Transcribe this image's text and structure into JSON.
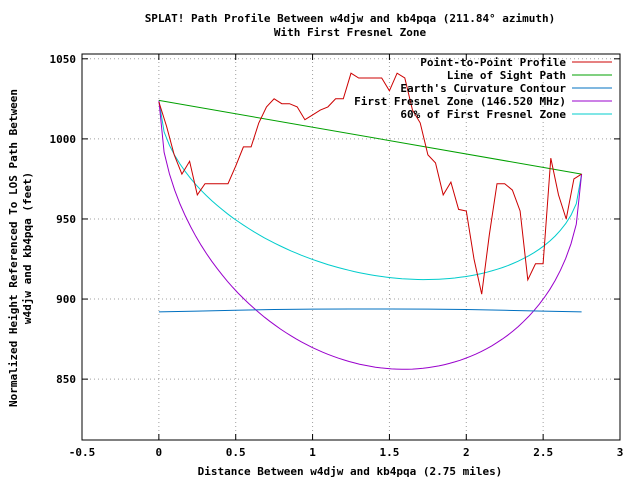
{
  "chart_data": {
    "type": "line",
    "title": "SPLAT! Path Profile Between w4djw and kb4pqa (211.84° azimuth)",
    "subtitle": "With First Fresnel Zone",
    "xlabel": "Distance Between w4djw and kb4pqa (2.75 miles)",
    "ylabel_line1": "Normalized Height Referenced To LOS Path Between",
    "ylabel_line2": "w4djw and kb4pqa (feet)",
    "xlim": [
      -0.5,
      3
    ],
    "ylim": [
      812,
      1053
    ],
    "x_ticks": [
      -0.5,
      0,
      0.5,
      1,
      1.5,
      2,
      2.5,
      3
    ],
    "x_tick_labels": [
      "-0.5",
      "0",
      "0.5",
      "1",
      "1.5",
      "2",
      "2.5",
      "3"
    ],
    "y_ticks": [
      850,
      900,
      950,
      1000,
      1050
    ],
    "y_tick_labels": [
      "850",
      "900",
      "950",
      "1000",
      "1050"
    ],
    "grid": true,
    "legend_position": "top-right",
    "series": [
      {
        "name": "Point-to-Point Profile",
        "color": "#cc0000",
        "x": [
          0,
          0.05,
          0.1,
          0.15,
          0.2,
          0.25,
          0.3,
          0.35,
          0.4,
          0.45,
          0.5,
          0.55,
          0.6,
          0.65,
          0.7,
          0.75,
          0.8,
          0.85,
          0.9,
          0.95,
          1.0,
          1.05,
          1.1,
          1.15,
          1.2,
          1.25,
          1.3,
          1.35,
          1.4,
          1.45,
          1.5,
          1.55,
          1.6,
          1.65,
          1.7,
          1.75,
          1.8,
          1.85,
          1.9,
          1.95,
          2.0,
          2.05,
          2.1,
          2.15,
          2.2,
          2.25,
          2.3,
          2.35,
          2.4,
          2.45,
          2.5,
          2.55,
          2.6,
          2.65,
          2.7,
          2.75
        ],
        "y": [
          1023,
          1008,
          990,
          978,
          986,
          965,
          972,
          972,
          972,
          972,
          983,
          995,
          995,
          1010,
          1020,
          1025,
          1022,
          1022,
          1020,
          1012,
          1015,
          1018,
          1020,
          1025,
          1025,
          1041,
          1038,
          1038,
          1038,
          1038,
          1030,
          1041,
          1038,
          1018,
          1010,
          990,
          985,
          965,
          973,
          956,
          955,
          925,
          903,
          940,
          972,
          972,
          968,
          955,
          912,
          922,
          922,
          988,
          965,
          950,
          975,
          978
        ]
      },
      {
        "name": "Line of Sight Path",
        "color": "#00a000",
        "x": [
          0,
          2.75
        ],
        "y": [
          1024,
          978
        ]
      },
      {
        "name": "Earth's Curvature Contour",
        "color": "#0070c0",
        "x": [
          0,
          0.25,
          0.5,
          0.75,
          1.0,
          1.25,
          1.5,
          1.75,
          2.0,
          2.25,
          2.5,
          2.75
        ],
        "y": [
          892,
          892.5,
          893,
          893.5,
          893.7,
          893.8,
          893.8,
          893.7,
          893.5,
          893,
          892.5,
          892
        ]
      },
      {
        "name": "First Fresnel Zone (146.520 MHz)",
        "color": "#9900cc",
        "kind": "fresnel",
        "k": 1.0
      },
      {
        "name": "60% of First Fresnel Zone",
        "color": "#00cccc",
        "kind": "fresnel",
        "k": 0.6
      }
    ],
    "fresnel": {
      "x_start": 0,
      "x_end": 2.75,
      "los_start": 1024,
      "los_end": 978,
      "radius_mid": 143
    }
  }
}
